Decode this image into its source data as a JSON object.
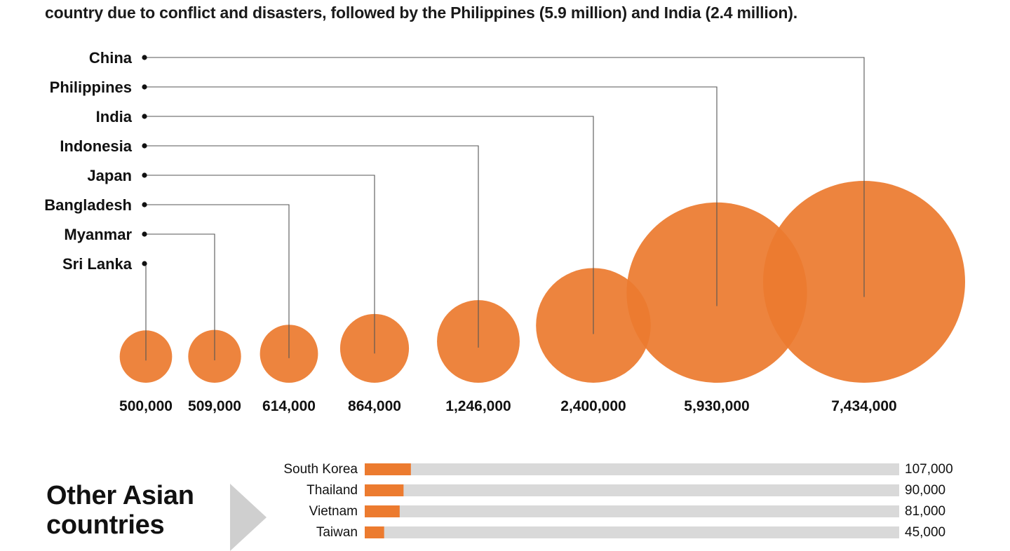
{
  "intro": {
    "line1": "country due to conflict and disasters, followed by the Philippines (5.9 million) and India (2.4 million)."
  },
  "other_section": {
    "title_line1": "Other Asian",
    "title_line2": "countries"
  },
  "colors": {
    "bubble": "#ec7b2f",
    "bar_track": "#d9d9d9",
    "bar_fill": "#ec7b2f",
    "text": "#111111",
    "leader": "#555555"
  },
  "chart_data": [
    {
      "type": "scatter",
      "encoding": "bubble area proportional to value",
      "series": [
        {
          "labels": [
            "Sri Lanka",
            "Myanmar",
            "Bangladesh",
            "Japan",
            "Indonesia",
            "India",
            "Philippines",
            "China"
          ],
          "values": [
            500000,
            509000,
            614000,
            864000,
            1246000,
            2400000,
            5930000,
            7434000
          ],
          "value_labels": [
            "500,000",
            "509,000",
            "614,000",
            "864,000",
            "1,246,000",
            "2,400,000",
            "5,930,000",
            "7,434,000"
          ]
        }
      ],
      "legend_order": [
        "China",
        "Philippines",
        "India",
        "Indonesia",
        "Japan",
        "Bangladesh",
        "Myanmar",
        "Sri Lanka"
      ]
    },
    {
      "type": "bar",
      "orientation": "horizontal",
      "categories": [
        "South Korea",
        "Thailand",
        "Vietnam",
        "Taiwan"
      ],
      "values": [
        107000,
        90000,
        81000,
        45000
      ],
      "value_labels": [
        "107,000",
        "90,000",
        "81,000",
        "45,000"
      ],
      "xlim": [
        0,
        7434000
      ]
    }
  ]
}
